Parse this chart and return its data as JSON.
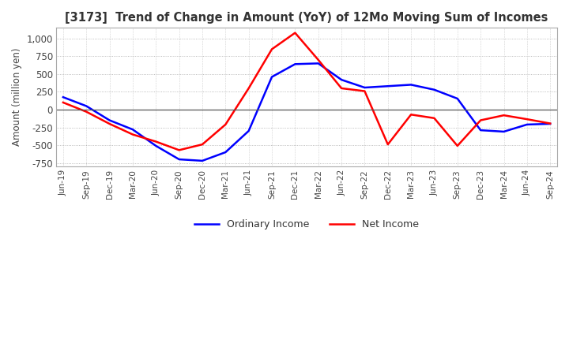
{
  "title": "[3173]  Trend of Change in Amount (YoY) of 12Mo Moving Sum of Incomes",
  "ylabel": "Amount (million yen)",
  "ylim": [
    -800,
    1150
  ],
  "yticks": [
    -750,
    -500,
    -250,
    0,
    250,
    500,
    750,
    1000
  ],
  "x_labels": [
    "Jun-19",
    "Sep-19",
    "Dec-19",
    "Mar-20",
    "Jun-20",
    "Sep-20",
    "Dec-20",
    "Mar-21",
    "Jun-21",
    "Sep-21",
    "Dec-21",
    "Mar-22",
    "Jun-22",
    "Sep-22",
    "Dec-22",
    "Mar-23",
    "Jun-23",
    "Sep-23",
    "Dec-23",
    "Mar-24",
    "Jun-24",
    "Sep-24"
  ],
  "ordinary_income": [
    175,
    50,
    -150,
    -280,
    -510,
    -700,
    -720,
    -600,
    -300,
    460,
    640,
    650,
    420,
    310,
    330,
    350,
    280,
    155,
    -290,
    -310,
    -210,
    -200
  ],
  "net_income": [
    100,
    -30,
    -200,
    -350,
    -450,
    -570,
    -490,
    -210,
    300,
    850,
    1080,
    700,
    300,
    260,
    -490,
    -70,
    -120,
    -510,
    -150,
    -80,
    -135,
    -195
  ],
  "ordinary_color": "#0000ff",
  "net_color": "#ff0000",
  "legend_labels": [
    "Ordinary Income",
    "Net Income"
  ],
  "background_color": "#ffffff",
  "grid_color": "#aaaaaa",
  "zero_line_color": "#555555"
}
